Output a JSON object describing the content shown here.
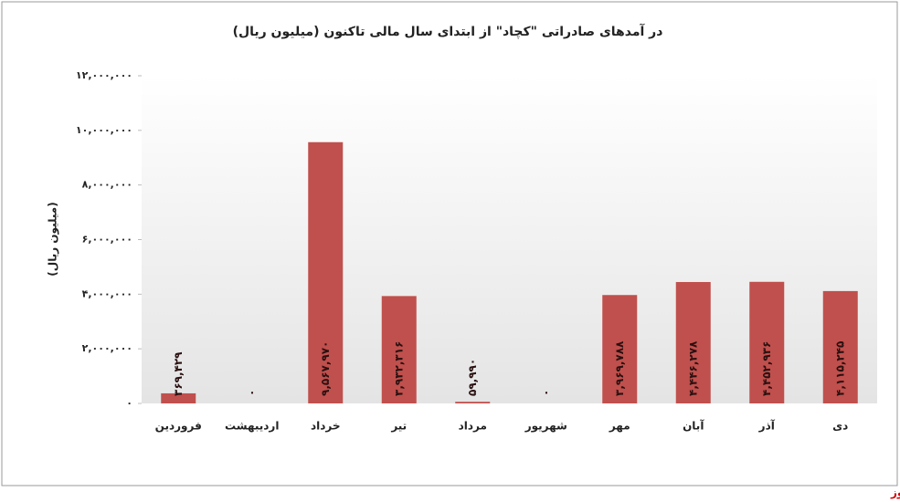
{
  "chart_data": {
    "type": "bar",
    "title": "در آمدهای صادراتی \"کچاد\" از ابتدای سال مالی تاکنون (میلیون ریال)",
    "y_label": "(میلیون ریال)",
    "source": "بورس نیوز",
    "categories": [
      "فروردین",
      "اردیبهشت",
      "خرداد",
      "تیر",
      "مرداد",
      "شهریور",
      "مهر",
      "آبان",
      "آذر",
      "دی"
    ],
    "values": [
      369429,
      0,
      9567970,
      3932316,
      59990,
      0,
      3969788,
      4446278,
      4452936,
      4115245
    ],
    "value_labels": [
      "۳۶۹,۴۲۹",
      "۰",
      "۹,۵۶۷,۹۷۰",
      "۳,۹۳۲,۳۱۶",
      "۵۹,۹۹۰",
      "۰",
      "۳,۹۶۹,۷۸۸",
      "۴,۴۴۶,۲۷۸",
      "۴,۴۵۲,۹۳۶",
      "۴,۱۱۵,۲۴۵"
    ],
    "color": "#c0504d",
    "ylim": [
      0,
      12000000
    ],
    "yticks": [
      {
        "value": 0,
        "label": "۰"
      },
      {
        "value": 2000000,
        "label": "۲,۰۰۰,۰۰۰"
      },
      {
        "value": 4000000,
        "label": "۴,۰۰۰,۰۰۰"
      },
      {
        "value": 6000000,
        "label": "۶,۰۰۰,۰۰۰"
      },
      {
        "value": 8000000,
        "label": "۸,۰۰۰,۰۰۰"
      },
      {
        "value": 10000000,
        "label": "۱۰,۰۰۰,۰۰۰"
      },
      {
        "value": 12000000,
        "label": "۱۲,۰۰۰,۰۰۰"
      }
    ]
  }
}
